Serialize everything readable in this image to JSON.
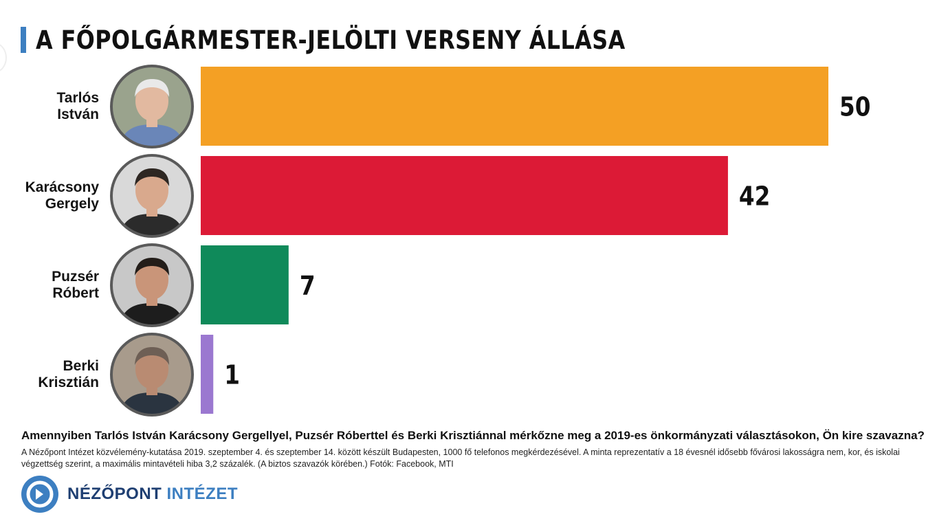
{
  "header": {
    "title": "A FŐPOLGÁRMESTER-JELÖLTI VERSENY ÁLLÁSA"
  },
  "chart_data": {
    "type": "bar",
    "orientation": "horizontal",
    "categories": [
      "Tarlós István",
      "Karácsony Gergely",
      "Puzsér Róbert",
      "Berki Krisztián"
    ],
    "values": [
      50,
      42,
      7,
      1
    ],
    "colors": [
      "#f4a024",
      "#dc1a36",
      "#0f8a5a",
      "#9b78d0"
    ],
    "title": "A FŐPOLGÁRMESTER-JELÖLTI VERSENY ÁLLÁSA",
    "xlabel": "",
    "ylabel": "",
    "xlim": [
      0,
      50
    ],
    "grid": false,
    "legend": "none"
  },
  "candidates": [
    {
      "name": "Tarlós\nIstván",
      "photo_icon": "portrait-photo-tarlos"
    },
    {
      "name": "Karácsony\nGergely",
      "photo_icon": "portrait-photo-karacsony"
    },
    {
      "name": "Puzsér\nRóbert",
      "photo_icon": "portrait-photo-puzser"
    },
    {
      "name": "Berki\nKrisztián",
      "photo_icon": "portrait-photo-berki"
    }
  ],
  "footer": {
    "question": "Amennyiben Tarlós István Karácsony Gergellyel, Puzsér Róberttel és Berki Krisztiánnal mérkőzne meg a 2019-es önkormányzati választásokon, Ön kire szavazna?",
    "note": "A Nézőpont Intézet közvélemény-kutatása 2019. szeptember 4. és szeptember 14. között készült Budapesten, 1000 fő telefonos megkérdezésével. A minta reprezentatív a 18 évesnél idősebb fővárosi lakosságra nem, kor, és iskolai végzettség szerint, a maximális mintavételi hiba 3,2 százalék. (A biztos szavazók körében.) Fotók: Facebook, MTI",
    "brand_part1": "NÉZŐPONT",
    "brand_part2": "INTÉZET",
    "brand_icon": "nezopont-logo-icon"
  }
}
